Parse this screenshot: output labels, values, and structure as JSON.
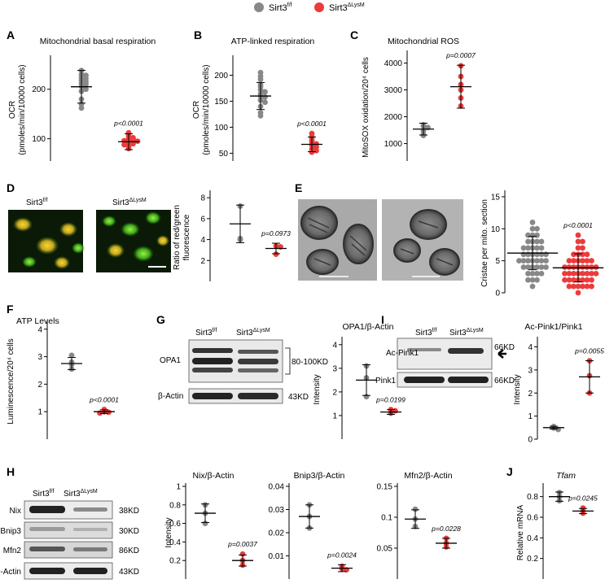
{
  "legend": {
    "items": [
      {
        "base": "Sirt3",
        "sup": "f/f",
        "color": "#888888"
      },
      {
        "base": "Sirt3",
        "sup": "ΔLysM",
        "color": "#ec3b3b"
      }
    ]
  },
  "panels": {
    "A": {
      "letter": "A"
    },
    "B": {
      "letter": "B"
    },
    "C": {
      "letter": "C"
    },
    "D": {
      "letter": "D"
    },
    "E": {
      "letter": "E"
    },
    "F": {
      "letter": "F"
    },
    "G": {
      "letter": "G"
    },
    "H": {
      "letter": "H"
    },
    "I": {
      "letter": "I"
    },
    "J": {
      "letter": "J"
    }
  },
  "micro_labels": {
    "d_left": {
      "base": "Sirt3",
      "sup": "f/f"
    },
    "d_right": {
      "base": "Sirt3",
      "sup": "ΔLysM"
    }
  },
  "blots": {
    "G": {
      "col_labels": [
        {
          "base": "Sirt3",
          "sup": "f/f"
        },
        {
          "base": "Sirt3",
          "sup": "ΔLysM"
        }
      ],
      "rows": [
        {
          "label": "OPA1",
          "size": "80-100KD"
        },
        {
          "label": "β-Actin",
          "size": "43KD"
        }
      ]
    },
    "I": {
      "col_labels": [
        {
          "base": "Sirt3",
          "sup": "f/f"
        },
        {
          "base": "Sirt3",
          "sup": "ΔLysM"
        }
      ],
      "rows": [
        {
          "label": "Ac-Pink1",
          "size": "66KD"
        },
        {
          "label": "Pink1",
          "size": "66KD"
        }
      ]
    },
    "H": {
      "col_labels": [
        {
          "base": "Sirt3",
          "sup": "f/f"
        },
        {
          "base": "Sirt3",
          "sup": "ΔLysM"
        }
      ],
      "rows": [
        {
          "label": "Nix",
          "size": "38KD"
        },
        {
          "label": "Bnip3",
          "size": "30KD"
        },
        {
          "label": "Mfn2",
          "size": "86KD"
        },
        {
          "label": "β-Actin",
          "size": "43KD"
        }
      ]
    }
  },
  "chart_data": [
    {
      "id": "A",
      "type": "scatter",
      "title": "Mitochondrial basal respiration",
      "ylabel": "OCR",
      "ylabel2": "(pmoles/min/10000 cells)",
      "yticks": [
        100,
        200
      ],
      "ylim": [
        55,
        262
      ],
      "pvalue": "p<0.0001",
      "series": [
        {
          "values": [
            238,
            230,
            228,
            224,
            222,
            218,
            216,
            212,
            210,
            206,
            200,
            196,
            180,
            170,
            162
          ],
          "mean": 205,
          "sd": 33
        },
        {
          "values": [
            112,
            106,
            102,
            100,
            98,
            96,
            95,
            92,
            90,
            88,
            85,
            80
          ],
          "mean": 94,
          "sd": 16
        }
      ]
    },
    {
      "id": "B",
      "type": "scatter",
      "title": "ATP-linked respiration",
      "ylabel": "OCR",
      "ylabel2": "(pmoles/min/10000 cells)",
      "yticks": [
        50,
        100,
        150,
        200
      ],
      "ylim": [
        35,
        232
      ],
      "pvalue": "p<0.0001",
      "series": [
        {
          "values": [
            205,
            198,
            192,
            182,
            178,
            172,
            168,
            164,
            160,
            158,
            152,
            148,
            140,
            128,
            122
          ],
          "mean": 160,
          "sd": 26
        },
        {
          "values": [
            88,
            82,
            76,
            72,
            68,
            66,
            62,
            58,
            55,
            52
          ],
          "mean": 67,
          "sd": 14
        }
      ]
    },
    {
      "id": "C",
      "type": "scatter",
      "title": "Mitochondrial ROS",
      "ylabel": "MitoSOX oxidation/20⁴ cells",
      "yticks": [
        1000,
        2000,
        3000,
        4000
      ],
      "ylim": [
        350,
        4350
      ],
      "pvalue": "p=0.0007",
      "series": [
        {
          "values": [
            1700,
            1650,
            1600,
            1480,
            1350,
            1300
          ],
          "mean": 1540,
          "sd": 220
        },
        {
          "values": [
            3900,
            3500,
            3200,
            3000,
            2700,
            2400
          ],
          "mean": 3120,
          "sd": 800
        }
      ]
    },
    {
      "id": "D",
      "type": "scatter",
      "ylabel": "Ratio of red/green",
      "ylabel2": "fluorescence",
      "yticks": [
        2,
        4,
        6,
        8
      ],
      "ylim": [
        0,
        8.4
      ],
      "pvalue": "p=0.0973",
      "series": [
        {
          "values": [
            7.2,
            4.1,
            4.0
          ],
          "mean": 5.5,
          "sd": 1.8
        },
        {
          "values": [
            3.4,
            3.3,
            2.6
          ],
          "mean": 3.15,
          "sd": 0.5
        }
      ]
    },
    {
      "id": "E",
      "type": "scatter",
      "ylabel": "Cristae per mito. section",
      "yticks": [
        0,
        5,
        10,
        15
      ],
      "ylim": [
        0,
        15.5
      ],
      "pvalue": "p<0.0001",
      "series": [
        {
          "values": [
            11,
            10,
            10,
            9,
            9,
            9,
            8,
            8,
            8,
            8,
            7,
            7,
            7,
            7,
            7,
            6,
            6,
            6,
            6,
            6,
            6,
            5,
            5,
            5,
            5,
            5,
            5,
            5,
            4,
            4,
            4,
            4,
            4,
            4,
            3,
            3,
            3,
            3,
            2,
            2,
            2,
            1
          ],
          "mean": 6.2,
          "sd": 2.6
        },
        {
          "values": [
            9,
            8,
            8,
            7,
            7,
            6,
            6,
            6,
            6,
            5,
            5,
            5,
            5,
            5,
            5,
            4,
            4,
            4,
            4,
            4,
            4,
            4,
            4,
            3,
            3,
            3,
            3,
            3,
            3,
            3,
            3,
            2,
            2,
            2,
            2,
            2,
            2,
            2,
            1,
            1,
            1,
            1,
            1,
            1,
            0
          ],
          "mean": 3.9,
          "sd": 2.2
        }
      ]
    },
    {
      "id": "F",
      "type": "scatter",
      "title": "ATP Levels",
      "ylabel": "Luminescence/20⁴ cells",
      "yticks": [
        1,
        2,
        3,
        4
      ],
      "ylim": [
        0,
        4.2
      ],
      "pvalue": "p<0.0001",
      "series": [
        {
          "values": [
            3.05,
            2.8,
            2.72,
            2.55
          ],
          "mean": 2.75,
          "sd": 0.22
        },
        {
          "values": [
            1.08,
            1.0,
            0.98,
            0.95
          ],
          "mean": 1.0,
          "sd": 0.07
        }
      ]
    },
    {
      "id": "G",
      "type": "scatter",
      "title": "OPA1/β-Actin",
      "ylabel": "Intensity",
      "yticks": [
        1,
        2,
        3,
        4
      ],
      "ylim": [
        0,
        4.2
      ],
      "pvalue": "p=0.0199",
      "series": [
        {
          "values": [
            3.1,
            2.6,
            1.8
          ],
          "mean": 2.5,
          "sd": 0.65
        },
        {
          "values": [
            1.25,
            1.2,
            1.1
          ],
          "mean": 1.15,
          "sd": 0.1
        }
      ]
    },
    {
      "id": "I",
      "type": "scatter",
      "title": "Ac-Pink1/Pink1",
      "ylabel": "Intensity",
      "yticks": [
        0,
        1,
        2,
        3,
        4
      ],
      "ylim": [
        0,
        4.3
      ],
      "pvalue": "p=0.0055",
      "series": [
        {
          "values": [
            0.55,
            0.48,
            0.42
          ],
          "mean": 0.5,
          "sd": 0.06
        },
        {
          "values": [
            3.4,
            2.75,
            2.0
          ],
          "mean": 2.7,
          "sd": 0.7
        }
      ]
    },
    {
      "id": "H1",
      "type": "scatter",
      "title": "Nix/β-Actin",
      "ylabel": "Intensity",
      "yticks": [
        0.2,
        0.4,
        0.6,
        0.8,
        1.0
      ],
      "ylim": [
        0.0,
        1.0
      ],
      "pvalue": "p=0.0037",
      "series": [
        {
          "values": [
            0.8,
            0.71,
            0.6
          ],
          "mean": 0.71,
          "sd": 0.1
        },
        {
          "values": [
            0.27,
            0.2,
            0.15
          ],
          "mean": 0.2,
          "sd": 0.06
        }
      ]
    },
    {
      "id": "H2",
      "type": "scatter",
      "title": "Bnip3/β-Actin",
      "yticks": [
        0.01,
        0.02,
        0.03,
        0.04
      ],
      "ylim": [
        0.0,
        0.04
      ],
      "pvalue": "p=0.0024",
      "series": [
        {
          "values": [
            0.032,
            0.027,
            0.022
          ],
          "mean": 0.027,
          "sd": 0.005
        },
        {
          "values": [
            0.0055,
            0.0045,
            0.004
          ],
          "mean": 0.0047,
          "sd": 0.0015
        }
      ]
    },
    {
      "id": "H3",
      "type": "scatter",
      "title": "Mfn2/β-Actin",
      "yticks": [
        0.05,
        0.1,
        0.15
      ],
      "ylim": [
        0.0,
        0.15
      ],
      "pvalue": "p=0.0228",
      "series": [
        {
          "values": [
            0.113,
            0.097,
            0.085
          ],
          "mean": 0.097,
          "sd": 0.015
        },
        {
          "values": [
            0.066,
            0.058,
            0.052
          ],
          "mean": 0.058,
          "sd": 0.008
        }
      ]
    },
    {
      "id": "J",
      "type": "scatter",
      "title": "Tfam",
      "ylabel": "Relative mRNA",
      "yticks": [
        0.2,
        0.4,
        0.6,
        0.8
      ],
      "ylim": [
        0.0,
        0.9
      ],
      "pvalue": "p=0.0245",
      "series": [
        {
          "values": [
            0.84,
            0.8,
            0.76
          ],
          "mean": 0.8,
          "sd": 0.045
        },
        {
          "values": [
            0.69,
            0.66,
            0.64
          ],
          "mean": 0.66,
          "sd": 0.025
        }
      ]
    }
  ]
}
